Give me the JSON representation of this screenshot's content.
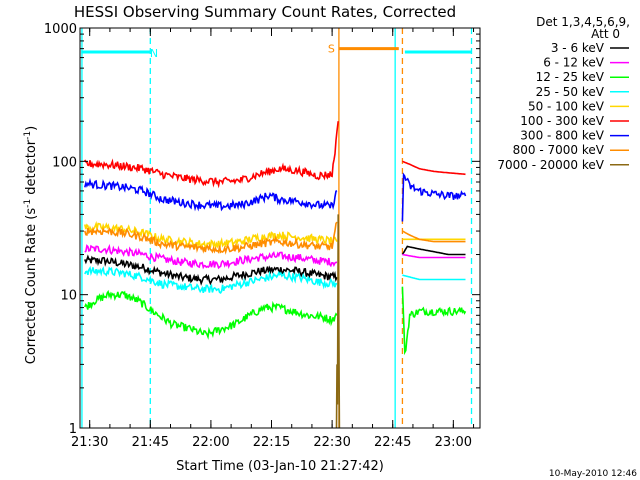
{
  "chart_data": {
    "type": "line",
    "title": "HESSI Observing Summary Count Rates, Corrected",
    "xlabel": "Start Time (03-Jan-10 21:27:42)",
    "ylabel_pre": "Corrected Count Rate (s",
    "ylabel_sup1": "-1",
    "ylabel_mid": " detector",
    "ylabel_sup2": "-1",
    "ylabel_post": ")",
    "yscale": "log",
    "ylim": [
      1,
      1000
    ],
    "xlim": [
      21.46,
      23.11
    ],
    "x_unit": "hours UT",
    "x_ticks": [
      {
        "value": 21.5,
        "label": "21:30"
      },
      {
        "value": 21.75,
        "label": "21:45"
      },
      {
        "value": 22.0,
        "label": "22:00"
      },
      {
        "value": 22.25,
        "label": "22:15"
      },
      {
        "value": 22.5,
        "label": "22:30"
      },
      {
        "value": 22.75,
        "label": "22:45"
      },
      {
        "value": 23.0,
        "label": "23:00"
      }
    ],
    "y_ticks": [
      {
        "value": 1,
        "label": "1"
      },
      {
        "value": 10,
        "label": "10"
      },
      {
        "value": 100,
        "label": "100"
      },
      {
        "value": 1000,
        "label": "1000"
      }
    ],
    "legend": {
      "placement": "right",
      "header1": "Det 1,3,4,5,6,9,",
      "header2": "Att 0"
    },
    "series": [
      {
        "name": "3 - 6 keV",
        "color": "#000000",
        "segments": [
          {
            "x": [
              21.48,
              21.56,
              21.64,
              21.72,
              21.8,
              21.88,
              21.96,
              22.04,
              22.12,
              22.2,
              22.28,
              22.36,
              22.44,
              22.52
            ],
            "y": [
              18,
              18,
              17,
              16,
              14.5,
              13.5,
              13,
              13,
              14,
              15,
              15.5,
              15,
              14,
              13.5
            ]
          },
          {
            "x": [
              22.79,
              22.81,
              22.86,
              22.92,
              22.98,
              23.05
            ],
            "y": [
              20,
              23,
              22,
              21,
              20,
              20
            ]
          }
        ]
      },
      {
        "name": "6 - 12 keV",
        "color": "#ff00ff",
        "segments": [
          {
            "x": [
              21.48,
              21.56,
              21.64,
              21.72,
              21.8,
              21.88,
              21.96,
              22.04,
              22.12,
              22.2,
              22.28,
              22.36,
              22.44,
              22.52
            ],
            "y": [
              22,
              22,
              21,
              20,
              18.5,
              17.5,
              17,
              17,
              18,
              19,
              19.5,
              19,
              18,
              17.5
            ]
          },
          {
            "x": [
              22.79,
              22.86,
              22.92,
              22.98,
              23.05
            ],
            "y": [
              20,
              19,
              19,
              19,
              19
            ]
          }
        ]
      },
      {
        "name": "12 - 25 keV",
        "color": "#00ff00",
        "segments": [
          {
            "x": [
              21.48,
              21.52,
              21.58,
              21.64,
              21.7,
              21.76,
              21.84,
              21.92,
              21.98,
              22.04,
              22.1,
              22.16,
              22.22,
              22.28,
              22.34,
              22.4,
              22.46,
              22.5,
              22.52
            ],
            "y": [
              8,
              9,
              10,
              10,
              9,
              7.5,
              6,
              5.5,
              5,
              5.5,
              6,
              7,
              8,
              8,
              7.5,
              7,
              6.8,
              6.5,
              7
            ]
          },
          {
            "x": [
              22.79,
              22.8,
              22.82,
              22.86,
              22.92,
              22.98,
              23.05
            ],
            "y": [
              12,
              3.5,
              7,
              7.5,
              7.5,
              7.5,
              7.5
            ]
          }
        ]
      },
      {
        "name": "25 - 50 keV",
        "color": "#00ffff",
        "segments": [
          {
            "x": [
              21.48,
              21.56,
              21.64,
              21.72,
              21.8,
              21.88,
              21.96,
              22.04,
              22.12,
              22.2,
              22.28,
              22.36,
              22.44,
              22.52
            ],
            "y": [
              15,
              15,
              14.5,
              13.5,
              12,
              11.5,
              11,
              11,
              12,
              13,
              14,
              13.5,
              12.5,
              12
            ]
          },
          {
            "x": [
              22.79,
              22.86,
              22.92,
              22.98,
              23.05
            ],
            "y": [
              14,
              13,
              13,
              13,
              13
            ]
          }
        ]
      },
      {
        "name": "50 - 100 keV",
        "color": "#ffd700",
        "segments": [
          {
            "x": [
              21.48,
              21.56,
              21.64,
              21.72,
              21.8,
              21.88,
              21.96,
              22.04,
              22.12,
              22.2,
              22.28,
              22.36,
              22.44,
              22.52
            ],
            "y": [
              32,
              32,
              31,
              29,
              26,
              25,
              24,
              24,
              25,
              27,
              28,
              27,
              26,
              25
            ]
          },
          {
            "x": [
              22.79,
              22.86,
              22.92,
              22.98,
              23.05
            ],
            "y": [
              26,
              26,
              26,
              26,
              26
            ]
          }
        ]
      },
      {
        "name": "100 - 300 keV",
        "color": "#ff0000",
        "segments": [
          {
            "x": [
              21.48,
              21.56,
              21.64,
              21.72,
              21.8,
              21.88,
              21.96,
              22.04,
              22.12,
              22.2,
              22.28,
              22.36,
              22.44,
              22.5,
              22.52,
              22.525
            ],
            "y": [
              96,
              95,
              92,
              88,
              80,
              75,
              72,
              70,
              72,
              80,
              88,
              85,
              78,
              80,
              160,
              200
            ]
          },
          {
            "x": [
              22.79,
              22.82,
              22.86,
              22.92,
              22.98,
              23.05
            ],
            "y": [
              100,
              95,
              88,
              84,
              82,
              80
            ]
          }
        ]
      },
      {
        "name": "300 - 800 keV",
        "color": "#0000ff",
        "segments": [
          {
            "x": [
              21.48,
              21.56,
              21.64,
              21.72,
              21.8,
              21.88,
              21.96,
              22.04,
              22.12,
              22.2,
              22.24,
              22.28,
              22.36,
              22.44,
              22.5,
              22.52
            ],
            "y": [
              68,
              66,
              64,
              60,
              52,
              49,
              47,
              46,
              47,
              52,
              56,
              52,
              50,
              47,
              46,
              60
            ]
          },
          {
            "x": [
              22.79,
              22.795,
              22.82,
              22.86,
              22.92,
              22.98,
              23.05
            ],
            "y": [
              35,
              80,
              65,
              60,
              57,
              55,
              55
            ]
          }
        ]
      },
      {
        "name": "800 - 7000 keV",
        "color": "#ff8c00",
        "segments": [
          {
            "x": [
              21.48,
              21.56,
              21.64,
              21.72,
              21.8,
              21.88,
              21.96,
              22.04,
              22.12,
              22.2,
              22.28,
              22.36,
              22.44,
              22.5,
              22.52
            ],
            "y": [
              30,
              30,
              29,
              27,
              24,
              23,
              22.5,
              22,
              22.5,
              24,
              25,
              24,
              23,
              23,
              35
            ]
          },
          {
            "x": [
              22.79,
              22.82,
              22.86,
              22.92,
              22.98,
              23.05
            ],
            "y": [
              30,
              28,
              26,
              25,
              25,
              25
            ]
          }
        ]
      },
      {
        "name": "7000 - 20000 keV",
        "color": "#8b6914",
        "segments": [
          {
            "x": [
              22.518,
              22.52,
              22.522,
              22.525,
              22.53
            ],
            "y": [
              1,
              3,
              1.5,
              40,
              1
            ]
          }
        ]
      }
    ],
    "annotations": [
      {
        "text": "N",
        "color": "#00ffff",
        "x": 21.765,
        "y": 650
      },
      {
        "text": "S",
        "color": "#ff8c00",
        "x": 22.497,
        "y": 700
      }
    ],
    "flags": [
      {
        "label": "N",
        "color": "#00ffff",
        "x": [
          21.465,
          21.75
        ],
        "y": 660
      },
      {
        "label": "S",
        "color": "#ff8c00",
        "x": [
          22.53,
          22.775
        ],
        "y": 700
      },
      {
        "label": "N",
        "color": "#00ffff",
        "x": [
          22.8,
          23.075
        ],
        "y": 660
      }
    ],
    "vlines": [
      {
        "x": 21.468,
        "color": "#00ffff",
        "style": "solid"
      },
      {
        "x": 21.75,
        "color": "#00ffff",
        "style": "dashed"
      },
      {
        "x": 22.528,
        "color": "#ff8c00",
        "style": "solid"
      },
      {
        "x": 22.76,
        "color": "#00ffff",
        "style": "solid"
      },
      {
        "x": 22.79,
        "color": "#ff8c00",
        "style": "dashed"
      },
      {
        "x": 23.075,
        "color": "#00ffff",
        "style": "dashed"
      }
    ],
    "timestamp": "10-May-2010 12:46"
  }
}
